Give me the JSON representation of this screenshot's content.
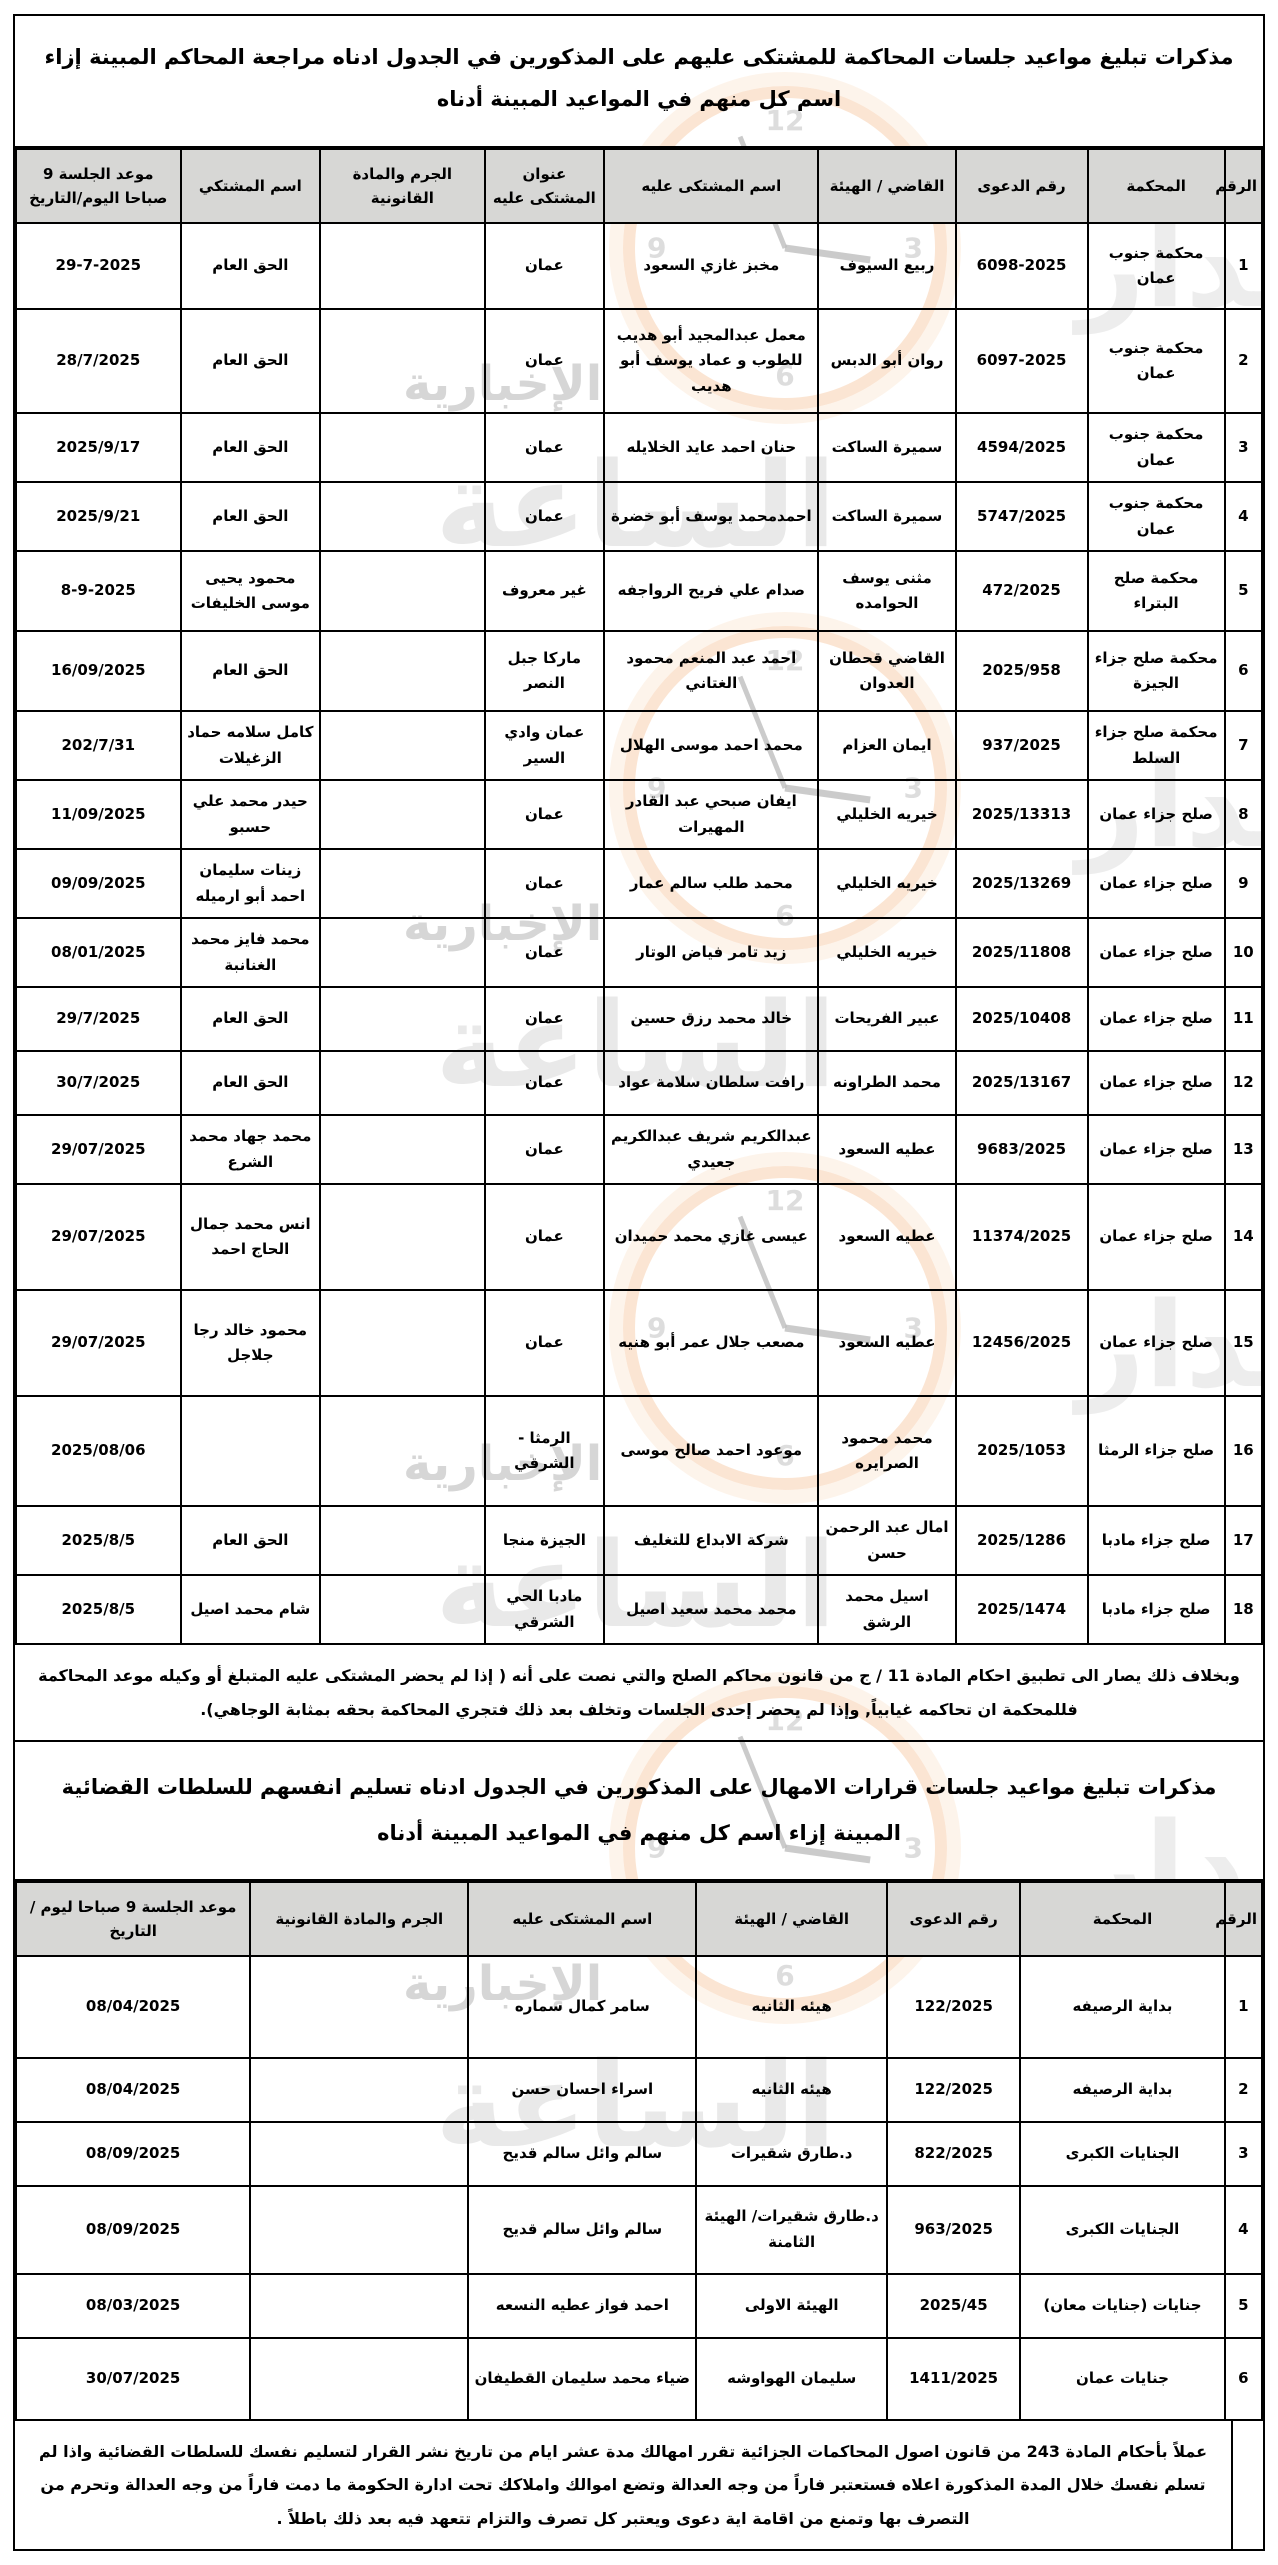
{
  "page": {
    "title1": "مذكرات تبليغ مواعيد جلسات المحاكمة للمشتكى عليهم على المذكورين في الجدول ادناه مراجعة المحاكم المبينة إزاء اسم كل منهم في المواعيد المبينة أدناه",
    "note1": "وبخلاف ذلك يصار الى تطبيق احكام المادة 11 / ج من قانون محاكم الصلح والتي نصت على أنه ( إذا لم يحضر المشتكى عليه المتبلغ أو وكيله موعد المحاكمة فللمحكمة ان تحاكمه غيابياً, وإذا لم يحضر إحدى الجلسات وتخلف بعد ذلك فتجري المحاكمة بحقه بمثابة الوجاهي).",
    "title2": "مذكرات تبليغ مواعيد جلسات قرارات الامهال على المذكورين في الجدول ادناه تسليم انفسهم للسلطات القضائية المبينة إزاء اسم كل منهم في المواعيد المبينة أدناه",
    "note2": "عملاً بأحكام المادة 243 من قانون اصول المحاكمات الجزائية تقرر امهالك مدة عشر ايام من تاريخ نشر القرار لتسليم نفسك للسلطات القضائية واذا لم تسلم نفسك خلال المدة المذكورة اعلاه فستعتبر فاراً من وجه العدالة وتضع اموالك واملاكك تحت ادارة الحكومة ما دمت فاراً من وجه العدالة وتحرم من التصرف بها وتمنع من اقامة اية دعوى ويعتبر كل تصرف والتزام تتعهد فيه بعد ذلك باطلاً ."
  },
  "table1": {
    "headers": [
      "الرقم",
      "المحكمة",
      "رقم الدعوى",
      "القاضي / الهيئة",
      "اسم المشتكى عليه",
      "عنوان المشتكى عليه",
      "الجرم والمادة القانونية",
      "اسم المشتكي",
      "موعد الجلسة 9 صباحا اليوم/التاريخ"
    ],
    "col_names": [
      "cell-row-number",
      "cell-court",
      "cell-case-number",
      "cell-judge-panel",
      "cell-defendant-name",
      "cell-defendant-address",
      "cell-crime-article",
      "cell-complainant-name",
      "cell-session-date"
    ],
    "rows": [
      [
        "1",
        "محكمة جنوب عمان",
        "6098-2025",
        "ربيع السيوف",
        "مخبز غازي السعود",
        "عمان",
        "",
        "الحق العام",
        "29-7-2025"
      ],
      [
        "2",
        "محكمة جنوب عمان",
        "6097-2025",
        "روان أبو الدبس",
        "معمل عبدالمجيد أبو هديب للطوب و عماد يوسف أبو هديب",
        "عمان",
        "",
        "الحق العام",
        "28/7/2025"
      ],
      [
        "3",
        "محكمة جنوب عمان",
        "4594/2025",
        "سميرة الساكت",
        "حنان احمد عايد الخلايله",
        "عمان",
        "",
        "الحق العام",
        "2025/9/17"
      ],
      [
        "4",
        "محكمة جنوب عمان",
        "5747/2025",
        "سميرة الساكت",
        "احمدمحمد يوسف أبو خضرة",
        "عمان",
        "",
        "الحق العام",
        "2025/9/21"
      ],
      [
        "5",
        "محكمة صلح البتراء",
        "472/2025",
        "مثنى يوسف الحوامده",
        "صدام علي فريح الرواجفه",
        "غير معروف",
        "",
        "محمود يحيى موسى الخليفات",
        "8-9-2025"
      ],
      [
        "6",
        "محكمة صلح جزاء الجيزة",
        "2025/958",
        "القاضي قحطان العدوان",
        "احمد عبد المنعم محمود الغتاني",
        "ماركا جبل النصر",
        "",
        "الحق العام",
        "16/09/2025"
      ],
      [
        "7",
        "محكمة صلح جزاء السلط",
        "937/2025",
        "ايمان العزام",
        "محمد احمد موسى الهلال",
        "عمان وادي السير",
        "",
        "كامل سلامه حماد الزغيلات",
        "202/7/31"
      ],
      [
        "8",
        "صلح جزاء عمان",
        "2025/13313",
        "خيريه الخليلي",
        "ايفان صبحي عبد القادر المهيرات",
        "عمان",
        "",
        "حيدر محمد علي حسبو",
        "11/09/2025"
      ],
      [
        "9",
        "صلح جزاء عمان",
        "2025/13269",
        "خيريه الخليلي",
        "محمد طلب سالم عمار",
        "عمان",
        "",
        "زينات سليمان احمد أبو ارميله",
        "09/09/2025"
      ],
      [
        "10",
        "صلح جزاء عمان",
        "2025/11808",
        "خيريه الخليلي",
        "زيد تامر فياض الوتار",
        "عمان",
        "",
        "محمد فايز محمد الغنانبة",
        "08/01/2025"
      ],
      [
        "11",
        "صلح جزاء عمان",
        "2025/10408",
        "عبير الفريحات",
        "خالد محمد رزق حسين",
        "عمان",
        "",
        "الحق العام",
        "29/7/2025"
      ],
      [
        "12",
        "صلح جزاء عمان",
        "2025/13167",
        "محمد الطراونه",
        "رافت سلطان سلامة عواد",
        "عمان",
        "",
        "الحق العام",
        "30/7/2025"
      ],
      [
        "13",
        "صلح جزاء عمان",
        "9683/2025",
        "عطيه السعود",
        "عبدالكريم شريف عبدالكريم جعيدي",
        "عمان",
        "",
        "محمد جهاد محمد الشرع",
        "29/07/2025"
      ],
      [
        "14",
        "صلح جزاء عمان",
        "11374/2025",
        "عطيه السعود",
        "عيسى غازي محمد حميدان",
        "عمان",
        "",
        "انس محمد جمال الحاج احمد",
        "29/07/2025"
      ],
      [
        "15",
        "صلح جزاء عمان",
        "12456/2025",
        "عطيه السعود",
        "مصعب جلال عمر أبو هنيه",
        "عمان",
        "",
        "محمود خالد رجا جلاجل",
        "29/07/2025"
      ],
      [
        "16",
        "صلح جزاء الرمثا",
        "2025/1053",
        "محمد محمود الصرايره",
        "موعود احمد صالح موسى",
        "الرمثا - الشرقي",
        "",
        "",
        "2025/08/06"
      ],
      [
        "17",
        "صلح جزاء مادبا",
        "2025/1286",
        "امال عبد الرحمن حسن",
        "شركة الابداع للتغليف",
        "الجيزة منجا",
        "",
        "الحق العام",
        "2025/8/5"
      ],
      [
        "18",
        "صلح جزاء مادبا",
        "2025/1474",
        "اسيل محمد الرشق",
        "محمد محمد سعيد اصيل",
        "مادبا الحي الشرقي",
        "",
        "شام محمد اصيل",
        "2025/8/5"
      ]
    ]
  },
  "table2": {
    "headers": [
      "الرقم",
      "المحكمة",
      "رقم الدعوى",
      "القاضي / الهيئة",
      "اسم المشتكى عليه",
      "الجرم والمادة القانونية",
      "موعد الجلسة 9 صباحا ليوم / التاريخ"
    ],
    "col_names": [
      "cell-row-number",
      "cell-court",
      "cell-case-number",
      "cell-judge-panel",
      "cell-defendant-name",
      "cell-crime-article",
      "cell-session-date"
    ],
    "rows": [
      [
        "1",
        "بداية الرصيفه",
        "122/2025",
        "هيئه الثانيه",
        "سامر كمال سماره",
        "",
        "08/04/2025"
      ],
      [
        "2",
        "بداية الرصيفه",
        "122/2025",
        "هيئه الثانيه",
        "اسراء احسان حسن",
        "",
        "08/04/2025"
      ],
      [
        "3",
        "الجنايات الكبرى",
        "822/2025",
        "د.طارق شقيرات",
        "سالم وائل سالم قديح",
        "",
        "08/09/2025"
      ],
      [
        "4",
        "الجنايات الكبرى",
        "963/2025",
        "د.طارق شقيرات/ الهيئة الثامنة",
        "سالم وائل سالم قديح",
        "",
        "08/09/2025"
      ],
      [
        "5",
        "جنايات (جنايات معان)",
        "2025/45",
        "الهيئة الاولى",
        "احمد فواز عطيه النسعه",
        "",
        "08/03/2025"
      ],
      [
        "6",
        "جنايات عمان",
        "1411/2025",
        "سليمان الهواوشه",
        "ضياء محمد سليمان القطيفان",
        "",
        "30/07/2025"
      ]
    ]
  },
  "watermark": {
    "brand_word_right": "مدار",
    "brand_word_big": "الساعة",
    "brand_word_side": "الإخبارية",
    "accent_color": "#f7c69e",
    "clock_numbers": {
      "n12": "12",
      "n3": "3",
      "n6": "6",
      "n9": "9"
    }
  }
}
